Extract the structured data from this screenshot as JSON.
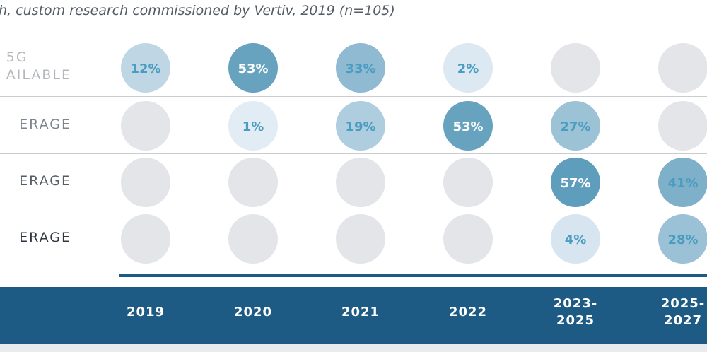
{
  "source_text": "h, custom research commissioned by Vertiv, 2019 (n=105)",
  "chart_data": {
    "type": "bubble-grid",
    "columns": [
      "2019",
      "2020",
      "2021",
      "2022",
      "2023-\n2025",
      "2025-\n2027"
    ],
    "rows": [
      {
        "label_lines": [
          "5G",
          "AILABLE"
        ],
        "label_color": "#b4b8bd",
        "values": [
          12,
          53,
          33,
          2,
          null,
          null
        ]
      },
      {
        "label_lines": [
          "ERAGE"
        ],
        "label_color": "#7e848c",
        "values": [
          null,
          1,
          19,
          53,
          27,
          null
        ]
      },
      {
        "label_lines": [
          "ERAGE"
        ],
        "label_color": "#555c66",
        "values": [
          null,
          null,
          null,
          null,
          57,
          41
        ]
      },
      {
        "label_lines": [
          "ERAGE"
        ],
        "label_color": "#2e3440",
        "values": [
          null,
          null,
          null,
          null,
          4,
          28
        ]
      }
    ],
    "value_suffix": "%",
    "colors": {
      "empty": "#e3e5e8",
      "scale_light": "#e6eff6",
      "scale_dark": "#5f9dbc",
      "label_on_light": "#4a9cc0",
      "label_on_dark": "#ffffff"
    }
  }
}
